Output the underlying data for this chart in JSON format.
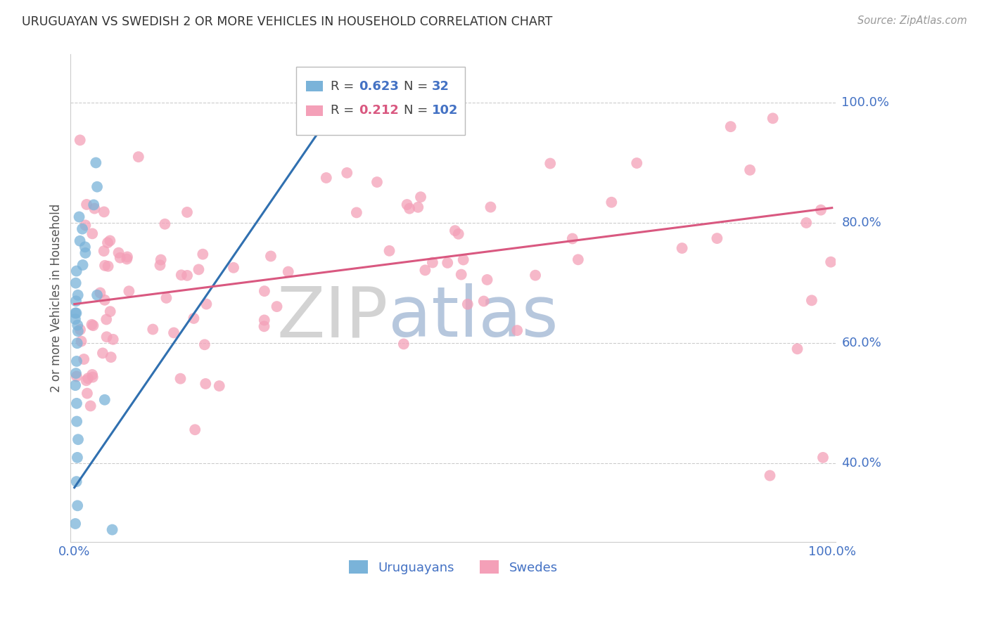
{
  "title": "URUGUAYAN VS SWEDISH 2 OR MORE VEHICLES IN HOUSEHOLD CORRELATION CHART",
  "source": "Source: ZipAtlas.com",
  "ylabel": "2 or more Vehicles in Household",
  "xlim": [
    -0.005,
    1.005
  ],
  "ylim": [
    0.27,
    1.08
  ],
  "yticks": [
    0.4,
    0.6,
    0.8,
    1.0
  ],
  "ytick_labels": [
    "40.0%",
    "60.0%",
    "80.0%",
    "100.0%"
  ],
  "xticks": [
    0.0,
    0.2,
    0.4,
    0.6,
    0.8,
    1.0
  ],
  "xtick_labels": [
    "0.0%",
    "",
    "",
    "",
    "",
    "100.0%"
  ],
  "uruguayan_color": "#7ab3d9",
  "swedish_color": "#f4a0b8",
  "uruguayan_line_color": "#3070b0",
  "swedish_line_color": "#d95880",
  "tick_label_color": "#4472c4",
  "source_color": "#999999",
  "background_color": "#ffffff",
  "grid_color": "#cccccc",
  "watermark_zip_color": "#c8c8c8",
  "watermark_atlas_color": "#aac0d8",
  "legend_box_color": "#e0e0e0",
  "legend_r_label_color": "#555555",
  "legend_r_val_color_uru": "#4472c4",
  "legend_r_val_color_swe": "#d95880",
  "legend_n_label_color": "#555555",
  "legend_n_val_color": "#4472c4",
  "uruguayan_line_x0": 0.0,
  "uruguayan_line_y0": 0.36,
  "uruguayan_line_x1": 0.36,
  "uruguayan_line_y1": 1.02,
  "swedish_line_x0": 0.0,
  "swedish_line_y0": 0.665,
  "swedish_line_x1": 1.0,
  "swedish_line_y1": 0.825
}
